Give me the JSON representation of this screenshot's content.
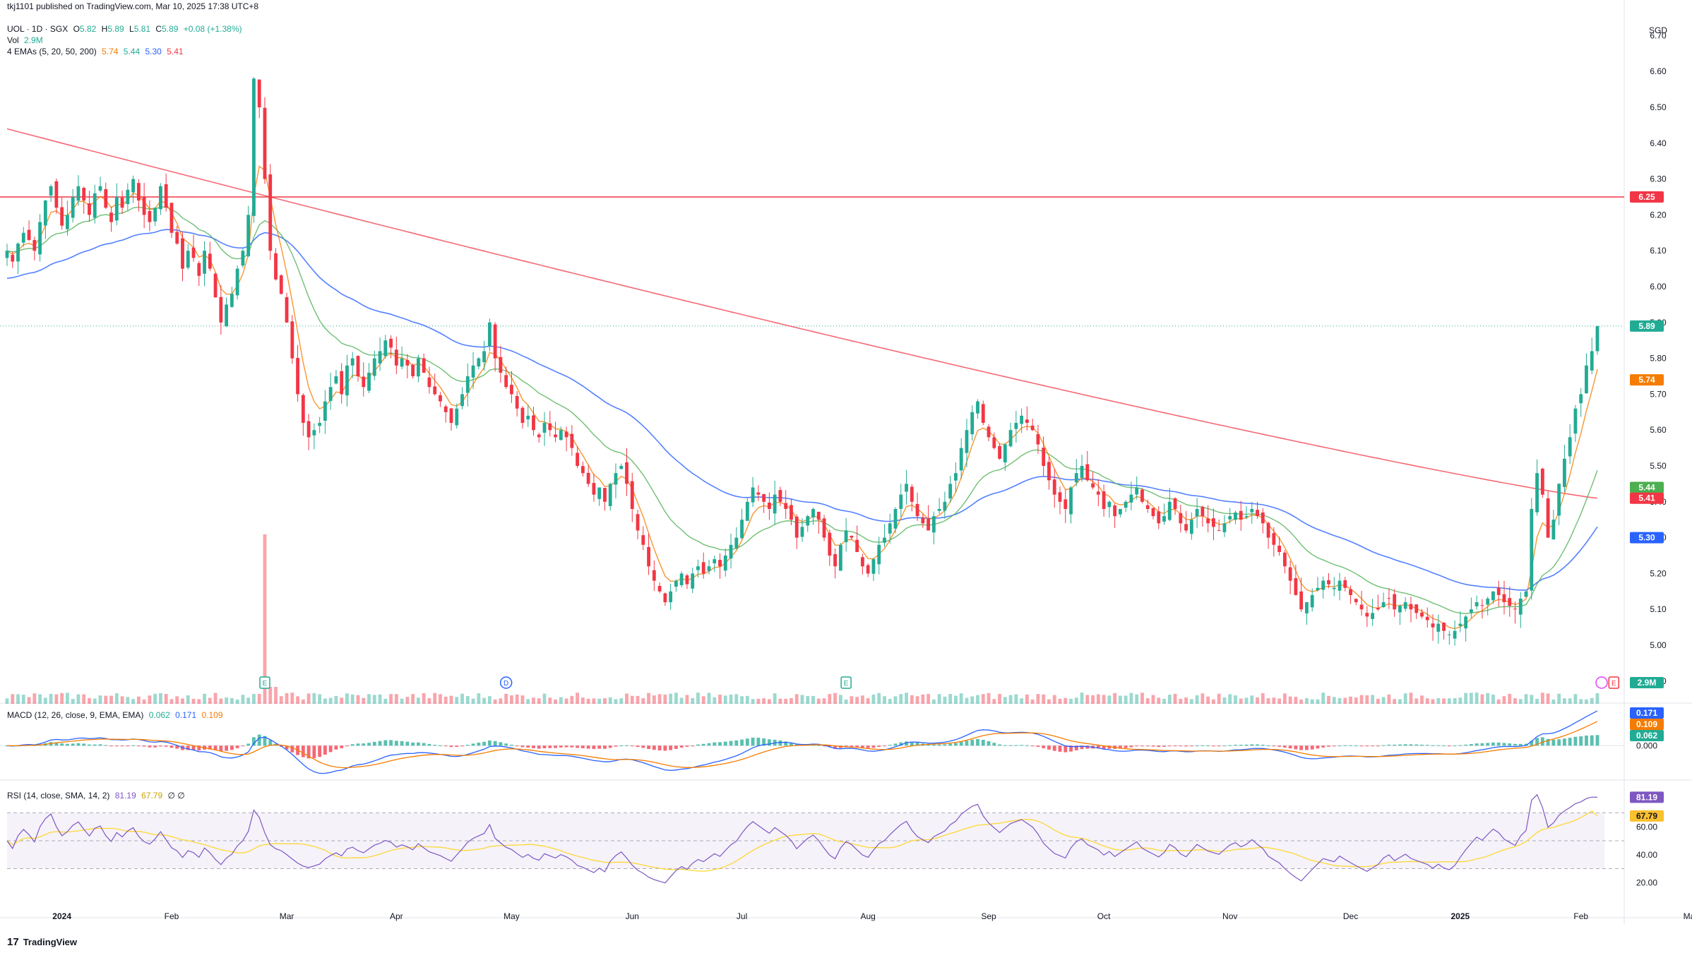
{
  "header": {
    "publisher": "tkj1101 published on TradingView.com, Mar 10, 2025 17:38 UTC+8",
    "symbol": "UOL · 1D · SGX",
    "open_label": "O",
    "open": "5.82",
    "high_label": "H",
    "high": "5.89",
    "low_label": "L",
    "low": "5.81",
    "close_label": "C",
    "close": "5.89",
    "change": "+0.08 (+1.38%)",
    "vol_label": "Vol",
    "vol_value": "2.9M",
    "ema_label": "4 EMAs (5, 20, 50, 200)",
    "ema5": "5.74",
    "ema20": "5.44",
    "ema50": "5.30",
    "ema200": "5.41"
  },
  "macd_legend": {
    "label": "MACD (12, 26, close, 9, EMA, EMA)",
    "hist": "0.062",
    "macd": "0.171",
    "signal": "0.109"
  },
  "rsi_legend": {
    "label": "RSI (14, close, SMA, 14, 2)",
    "rsi": "81.19",
    "sma": "67.79",
    "extra": "∅ ∅"
  },
  "currency": "SGD",
  "footer": {
    "brand": "TradingView",
    "logo": "17"
  },
  "chart_data": {
    "type": "candlestick",
    "ylim": [
      4.88,
      6.75
    ],
    "price_ticks": [
      "6.70",
      "6.60",
      "6.50",
      "6.40",
      "6.30",
      "6.20",
      "6.10",
      "6.00",
      "5.90",
      "5.80",
      "5.70",
      "5.60",
      "5.50",
      "5.40",
      "5.30",
      "5.20",
      "5.10",
      "5.00",
      "4.90"
    ],
    "x_ticks": [
      {
        "label": "2024",
        "i": 10
      },
      {
        "label": "Feb",
        "i": 30
      },
      {
        "label": "Mar",
        "i": 51
      },
      {
        "label": "Apr",
        "i": 71
      },
      {
        "label": "May",
        "i": 92
      },
      {
        "label": "Jun",
        "i": 114
      },
      {
        "label": "Jul",
        "i": 134
      },
      {
        "label": "Aug",
        "i": 157
      },
      {
        "label": "Sep",
        "i": 179
      },
      {
        "label": "Oct",
        "i": 200
      },
      {
        "label": "Nov",
        "i": 223
      },
      {
        "label": "Dec",
        "i": 245
      },
      {
        "label": "2025",
        "i": 265
      },
      {
        "label": "Feb",
        "i": 287
      },
      {
        "label": "Mar",
        "i": 307
      }
    ],
    "horizontal_line": {
      "value": 6.25,
      "label": "6.25",
      "color": "#f23645"
    },
    "last_close_line": 5.89,
    "closes": [
      6.1,
      6.07,
      6.12,
      6.15,
      6.13,
      6.1,
      6.18,
      6.24,
      6.28,
      6.22,
      6.17,
      6.2,
      6.25,
      6.28,
      6.24,
      6.2,
      6.26,
      6.28,
      6.22,
      6.18,
      6.25,
      6.22,
      6.27,
      6.3,
      6.24,
      6.2,
      6.18,
      6.22,
      6.28,
      6.22,
      6.15,
      6.12,
      6.05,
      6.1,
      6.08,
      6.03,
      6.1,
      6.05,
      5.97,
      5.9,
      5.95,
      5.98,
      6.05,
      6.1,
      6.2,
      6.58,
      6.5,
      6.3,
      6.1,
      6.02,
      5.98,
      5.9,
      5.8,
      5.7,
      5.62,
      5.58,
      5.6,
      5.62,
      5.68,
      5.72,
      5.75,
      5.7,
      5.78,
      5.8,
      5.75,
      5.72,
      5.76,
      5.8,
      5.82,
      5.85,
      5.83,
      5.78,
      5.8,
      5.78,
      5.75,
      5.8,
      5.76,
      5.72,
      5.7,
      5.68,
      5.65,
      5.62,
      5.66,
      5.7,
      5.75,
      5.78,
      5.8,
      5.82,
      5.9,
      5.8,
      5.76,
      5.72,
      5.7,
      5.66,
      5.62,
      5.64,
      5.6,
      5.58,
      5.62,
      5.6,
      5.58,
      5.6,
      5.58,
      5.55,
      5.5,
      5.48,
      5.45,
      5.42,
      5.44,
      5.4,
      5.45,
      5.48,
      5.5,
      5.45,
      5.38,
      5.32,
      5.28,
      5.22,
      5.18,
      5.15,
      5.12,
      5.15,
      5.18,
      5.2,
      5.17,
      5.2,
      5.22,
      5.2,
      5.22,
      5.24,
      5.22,
      5.25,
      5.28,
      5.3,
      5.35,
      5.4,
      5.44,
      5.42,
      5.4,
      5.38,
      5.42,
      5.4,
      5.38,
      5.35,
      5.3,
      5.33,
      5.36,
      5.38,
      5.35,
      5.3,
      5.25,
      5.22,
      5.28,
      5.32,
      5.3,
      5.26,
      5.22,
      5.2,
      5.24,
      5.28,
      5.3,
      5.34,
      5.38,
      5.42,
      5.45,
      5.4,
      5.36,
      5.34,
      5.32,
      5.36,
      5.38,
      5.4,
      5.45,
      5.48,
      5.55,
      5.6,
      5.65,
      5.68,
      5.62,
      5.58,
      5.55,
      5.52,
      5.56,
      5.6,
      5.62,
      5.64,
      5.62,
      5.6,
      5.56,
      5.5,
      5.46,
      5.42,
      5.4,
      5.38,
      5.44,
      5.48,
      5.5,
      5.46,
      5.44,
      5.42,
      5.38,
      5.4,
      5.36,
      5.38,
      5.4,
      5.42,
      5.44,
      5.4,
      5.38,
      5.36,
      5.34,
      5.36,
      5.4,
      5.38,
      5.34,
      5.32,
      5.35,
      5.38,
      5.36,
      5.34,
      5.33,
      5.32,
      5.34,
      5.36,
      5.37,
      5.35,
      5.36,
      5.38,
      5.36,
      5.34,
      5.3,
      5.28,
      5.26,
      5.22,
      5.18,
      5.14,
      5.1,
      5.12,
      5.14,
      5.16,
      5.18,
      5.17,
      5.16,
      5.18,
      5.16,
      5.14,
      5.12,
      5.1,
      5.08,
      5.09,
      5.1,
      5.12,
      5.13,
      5.1,
      5.11,
      5.12,
      5.1,
      5.09,
      5.08,
      5.07,
      5.05,
      5.06,
      5.04,
      5.03,
      5.04,
      5.06,
      5.08,
      5.1,
      5.12,
      5.11,
      5.13,
      5.15,
      5.14,
      5.12,
      5.11,
      5.1,
      5.13,
      5.15,
      5.38,
      5.48,
      5.42,
      5.3,
      5.35,
      5.45,
      5.52,
      5.58,
      5.66,
      5.7,
      5.78,
      5.82,
      5.89
    ],
    "ema5_value": 5.74,
    "ema20_value": 5.44,
    "ema50_value": 5.3,
    "ema200_value": 5.41,
    "volume_last": "2.9M",
    "macd_last": 0.171,
    "signal_last": 0.109,
    "hist_last": 0.062,
    "rsi_ticks": [
      "80.00",
      "60.00",
      "40.00",
      "20.00"
    ],
    "rsi_last": 81.19,
    "rsi_sma_last": 67.79,
    "event_markers": [
      {
        "i": 47,
        "kind": "E"
      },
      {
        "i": 91,
        "kind": "D"
      },
      {
        "i": 153,
        "kind": "E"
      },
      {
        "i": 293,
        "kind": "E"
      }
    ],
    "colors": {
      "up": "#22ab94",
      "down": "#f23645",
      "ema5": "#f57c00",
      "ema20": "#4caf50",
      "ema50": "#2962ff",
      "ema200": "#f23645",
      "macd": "#2962ff",
      "signal": "#f57c00",
      "rsi": "#7e57c2",
      "rsi_sma": "#fdd835"
    }
  }
}
